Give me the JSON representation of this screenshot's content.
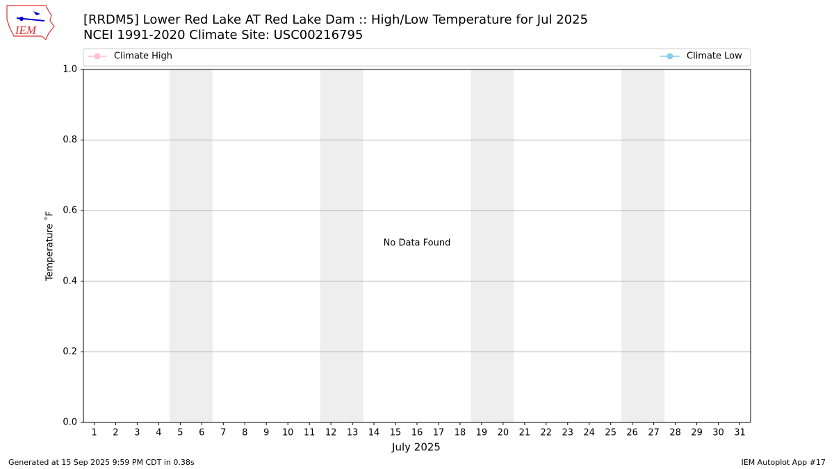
{
  "logo_text": "IEM",
  "chart_data": {
    "type": "line",
    "title": "[RRDM5] Lower Red Lake  AT Red Lake Dam :: High/Low Temperature for Jul 2025",
    "subtitle": "NCEI 1991-2020 Climate Site: USC00216795",
    "xlabel": "July 2025",
    "ylabel": "Temperature ˚F",
    "annotation": "No Data Found",
    "categories": [
      "1",
      "2",
      "3",
      "4",
      "5",
      "6",
      "7",
      "8",
      "9",
      "10",
      "11",
      "12",
      "13",
      "14",
      "15",
      "16",
      "17",
      "18",
      "19",
      "20",
      "21",
      "22",
      "23",
      "24",
      "25",
      "26",
      "27",
      "28",
      "29",
      "30",
      "31"
    ],
    "series": [
      {
        "name": "Climate High",
        "color": "pink",
        "values": [
          null,
          null,
          null,
          null,
          null,
          null,
          null,
          null,
          null,
          null,
          null,
          null,
          null,
          null,
          null,
          null,
          null,
          null,
          null,
          null,
          null,
          null,
          null,
          null,
          null,
          null,
          null,
          null,
          null,
          null,
          null
        ]
      },
      {
        "name": "Climate Low",
        "color": "skyblue",
        "values": [
          null,
          null,
          null,
          null,
          null,
          null,
          null,
          null,
          null,
          null,
          null,
          null,
          null,
          null,
          null,
          null,
          null,
          null,
          null,
          null,
          null,
          null,
          null,
          null,
          null,
          null,
          null,
          null,
          null,
          null,
          null
        ]
      }
    ],
    "shaded_days": [
      "5",
      "6",
      "12",
      "13",
      "19",
      "20",
      "26",
      "27"
    ],
    "ylim": [
      0,
      1
    ],
    "yticks": [
      {
        "value": 0,
        "label": "0.0"
      },
      0.2,
      0.4,
      0.6,
      0.8,
      {
        "value": 1,
        "label": "1.0"
      }
    ],
    "grid": true,
    "footer_left": "Generated at 15 Sep 2025 9:59 PM CDT in 0.38s",
    "footer_right": "IEM Autoplot App #17"
  }
}
